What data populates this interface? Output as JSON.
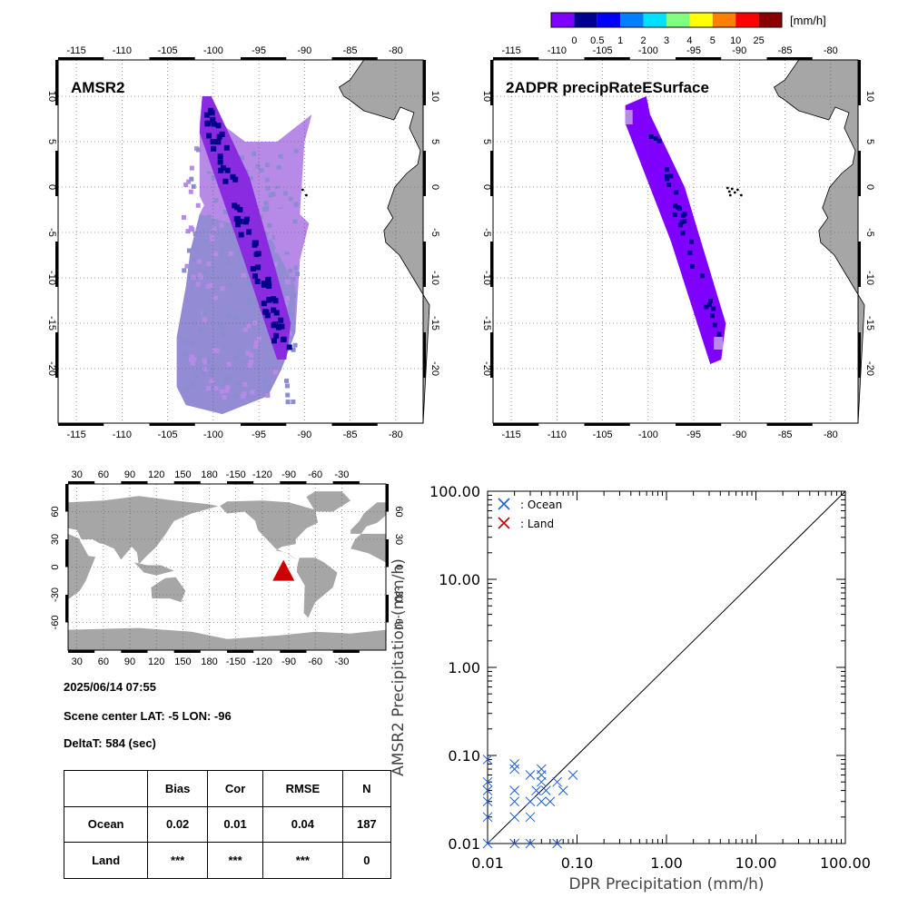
{
  "colorbar": {
    "unit": "[mm/h]",
    "labels": [
      "0",
      "0.5",
      "1",
      "2",
      "3",
      "4",
      "5",
      "10",
      "25"
    ],
    "colors": [
      "#8000ff",
      "#000090",
      "#0000ff",
      "#0080ff",
      "#00e0ff",
      "#80ff80",
      "#ffff00",
      "#ff8000",
      "#ff0000",
      "#8b0000"
    ]
  },
  "colors": {
    "land": "#a6a6a6",
    "amsr2_dark": "#00008b",
    "amsr2_purple": "#8a2be2",
    "amsr2_light": "#b88ae8",
    "amsr2_slate": "#8c8cd0",
    "ocean_marker": "#1f5fd6",
    "land_marker": "#c00000",
    "scene_marker": "#cc0000"
  },
  "panels": {
    "amsr2_title": "AMSR2",
    "dpr_title": "2ADPR precipRateESurface",
    "lon_ticks": [
      "-115",
      "-110",
      "-105",
      "-100",
      "-95",
      "-90",
      "-85",
      "-80"
    ],
    "lat_ticks": [
      "10",
      "5",
      "0",
      "-5",
      "-10",
      "-15",
      "-20"
    ]
  },
  "world_map": {
    "lon_ticks": [
      "30",
      "60",
      "90",
      "120",
      "150",
      "180",
      "-150",
      "-120",
      "-90",
      "-60",
      "-30"
    ],
    "lat_ticks": [
      "60",
      "30",
      "0",
      "-30",
      "-60"
    ]
  },
  "info": {
    "datetime": "2025/06/14 07:55",
    "scene_center": "Scene center LAT: -5   LON: -96",
    "delta_t": "DeltaT:  584 (sec)"
  },
  "stats_table": {
    "headers": [
      "",
      "Bias",
      "Cor",
      "RMSE",
      "N"
    ],
    "rows": [
      [
        "Ocean",
        "0.02",
        "0.01",
        "0.04",
        "187"
      ],
      [
        "Land",
        "***",
        "***",
        "***",
        "0"
      ]
    ]
  },
  "chart_data": {
    "type": "scatter",
    "xlabel": "DPR Precipitation (mm/h)",
    "ylabel": "AMSR2 Precipitation (mm/h)",
    "xscale": "log",
    "yscale": "log",
    "xlim": [
      0.01,
      100.0
    ],
    "ylim": [
      0.01,
      100.0
    ],
    "tick_labels": [
      "0.01",
      "0.10",
      "1.00",
      "10.00",
      "100.00"
    ],
    "legend_placement": "top-left",
    "series": [
      {
        "name": ": Ocean",
        "color": "#1f5fd6",
        "points": [
          [
            0.01,
            0.09
          ],
          [
            0.01,
            0.05
          ],
          [
            0.01,
            0.04
          ],
          [
            0.01,
            0.03
          ],
          [
            0.01,
            0.02
          ],
          [
            0.01,
            0.01
          ],
          [
            0.02,
            0.08
          ],
          [
            0.02,
            0.07
          ],
          [
            0.02,
            0.04
          ],
          [
            0.02,
            0.03
          ],
          [
            0.02,
            0.02
          ],
          [
            0.02,
            0.01
          ],
          [
            0.03,
            0.06
          ],
          [
            0.03,
            0.03
          ],
          [
            0.03,
            0.02
          ],
          [
            0.03,
            0.01
          ],
          [
            0.035,
            0.04
          ],
          [
            0.04,
            0.07
          ],
          [
            0.04,
            0.06
          ],
          [
            0.04,
            0.05
          ],
          [
            0.04,
            0.03
          ],
          [
            0.045,
            0.04
          ],
          [
            0.05,
            0.03
          ],
          [
            0.06,
            0.05
          ],
          [
            0.06,
            0.01
          ],
          [
            0.07,
            0.04
          ],
          [
            0.09,
            0.06
          ]
        ]
      },
      {
        "name": ": Land",
        "color": "#c00000",
        "points": []
      }
    ]
  }
}
